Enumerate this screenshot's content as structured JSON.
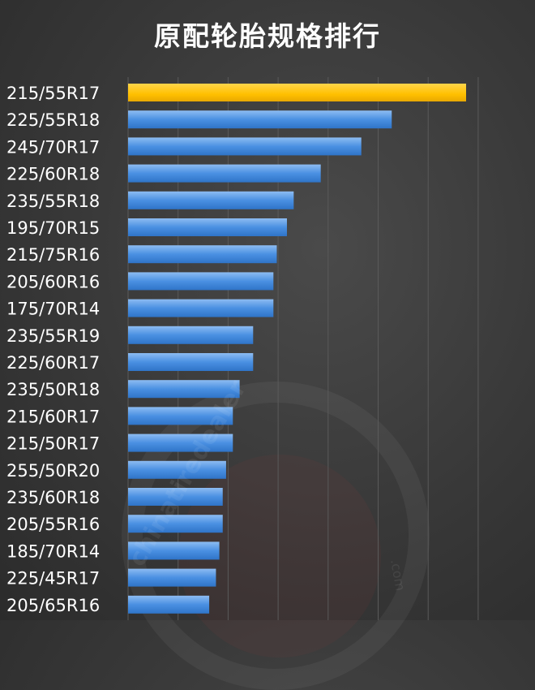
{
  "chart_data": {
    "type": "bar",
    "orientation": "horizontal",
    "title": "原配轮胎规格排行",
    "categories": [
      "215/55R17",
      "225/55R18",
      "245/70R17",
      "225/60R18",
      "235/55R18",
      "195/70R15",
      "215/75R16",
      "205/60R16",
      "175/70R14",
      "235/55R19",
      "225/60R17",
      "235/50R18",
      "215/60R17",
      "215/50R17",
      "255/50R20",
      "235/60R18",
      "205/55R16",
      "185/70R14",
      "225/45R17",
      "205/65R16"
    ],
    "values": [
      100,
      78,
      69,
      57,
      49,
      47,
      44,
      43,
      43,
      37,
      37,
      33,
      31,
      31,
      29,
      28,
      28,
      27,
      26,
      24
    ],
    "xlim": [
      0,
      100
    ],
    "highlight_index": 0,
    "colors": {
      "highlight": "#FFC000",
      "bar": "#4A90E2",
      "bar_light": "#7FB2EE",
      "grid": "#5a5a5a",
      "label": "#ffffff",
      "title": "#ffffff"
    },
    "grid": true
  },
  "watermark": {
    "text": "chinatiredealer",
    "suffix": ".com"
  }
}
